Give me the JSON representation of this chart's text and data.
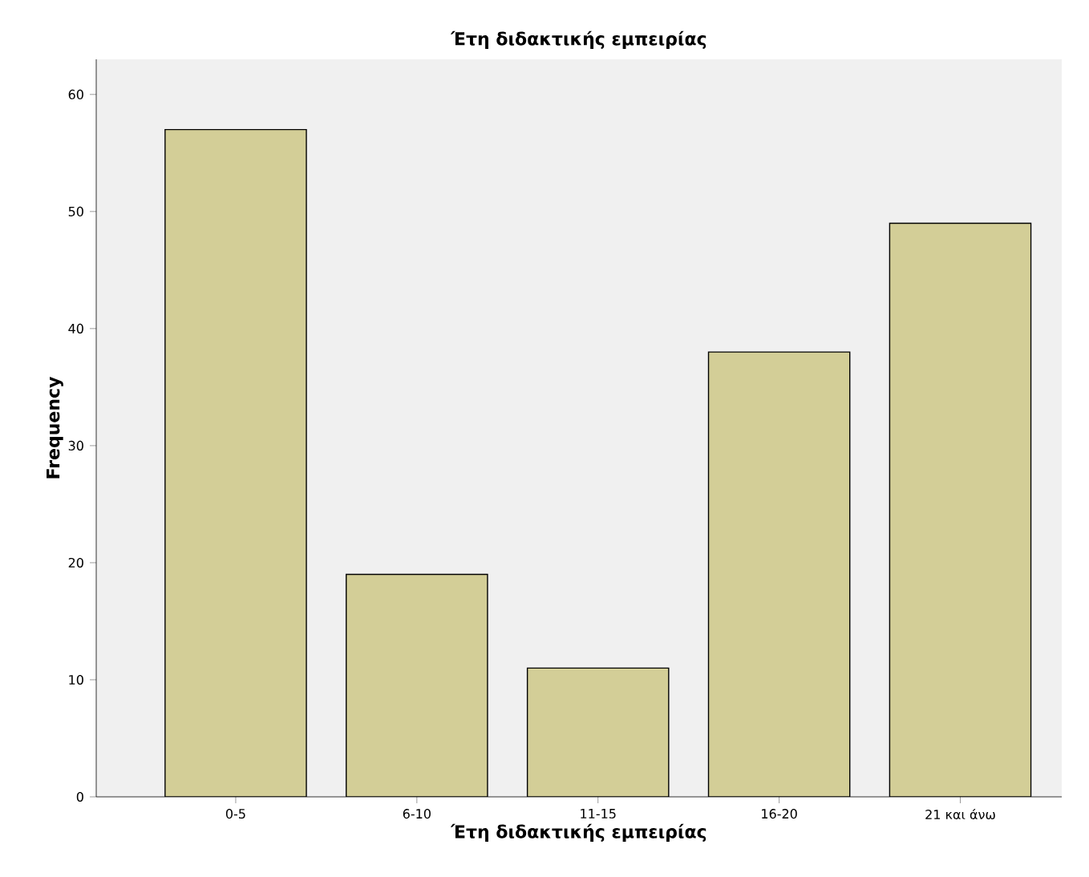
{
  "chart_data": {
    "type": "bar",
    "title": "Έτη διδακτικής εμπειρίας",
    "xlabel": "Έτη διδακτικής εμπειρίας",
    "ylabel": "Frequency",
    "categories": [
      "0-5",
      "6-10",
      "11-15",
      "16-20",
      "21 και άνω"
    ],
    "values": [
      57,
      19,
      11,
      38,
      49
    ],
    "color": "#d3ce97",
    "ylim": [
      0,
      63
    ],
    "yticks": [
      0,
      10,
      20,
      30,
      40,
      50,
      60
    ]
  }
}
